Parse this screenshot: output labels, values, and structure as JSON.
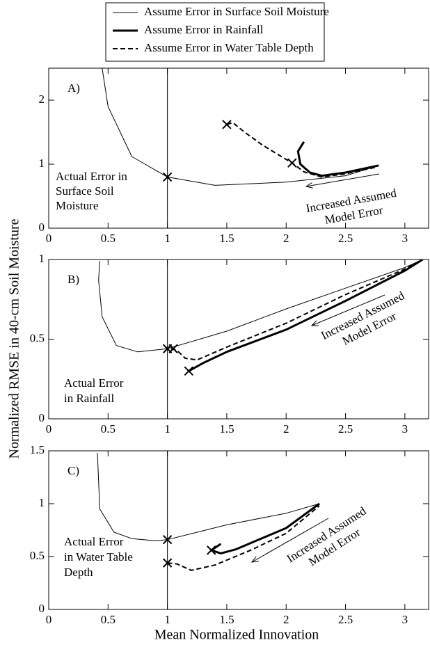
{
  "chart_data": [
    {
      "type": "line",
      "panel_label": "A)",
      "xlim": [
        0,
        3.2
      ],
      "ylim": [
        0,
        2.5
      ],
      "xticks": [
        0,
        0.5,
        1,
        1.5,
        2,
        2.5,
        3
      ],
      "yticks": [
        0,
        1,
        2
      ],
      "ref_x": 1,
      "series": [
        {
          "name": "Assume Error in Surface Soil Moisture",
          "color": "#000000",
          "line_width": 1,
          "dash": false,
          "x": [
            0.45,
            0.5,
            0.7,
            1.0,
            1.4,
            2.0,
            2.5,
            2.78
          ],
          "values": [
            2.5,
            1.9,
            1.12,
            0.8,
            0.67,
            0.72,
            0.82,
            0.98
          ]
        },
        {
          "name": "Assume Error in Rainfall",
          "color": "#000000",
          "line_width": 3,
          "dash": false,
          "x": [
            2.15,
            2.1,
            2.12,
            2.2,
            2.3,
            2.5,
            2.78
          ],
          "values": [
            1.35,
            1.2,
            1.0,
            0.87,
            0.82,
            0.87,
            0.98
          ]
        },
        {
          "name": "Assume Error in Water Table Depth",
          "color": "#000000",
          "line_width": 2,
          "dash": true,
          "x": [
            1.5,
            1.55,
            1.65,
            1.8,
            1.95,
            2.05,
            2.15,
            2.3,
            2.5,
            2.75
          ],
          "values": [
            1.62,
            1.65,
            1.5,
            1.3,
            1.13,
            1.02,
            0.88,
            0.8,
            0.85,
            0.95
          ]
        }
      ],
      "markers": {
        "x": [
          1,
          1.5,
          2.05
        ],
        "y": [
          0.8,
          1.62,
          1.02
        ]
      },
      "annotations": [
        {
          "lines": [
            "Actual Error in",
            "Surface Soil",
            "Moisture"
          ]
        },
        {
          "lines": [
            "Increased Assumed",
            "Model Error"
          ]
        }
      ]
    },
    {
      "type": "line",
      "panel_label": "B)",
      "y_label": "Normalized RMSE in 40-cm Soil Moisture",
      "xlim": [
        0,
        3.2
      ],
      "ylim": [
        0,
        1
      ],
      "xticks": [
        0,
        0.5,
        1,
        1.5,
        2,
        2.5,
        3
      ],
      "yticks": [
        0,
        0.5,
        1
      ],
      "ref_x": 1,
      "series": [
        {
          "name": "Assume Error in Surface Soil Moisture",
          "color": "#000000",
          "line_width": 1,
          "dash": false,
          "x": [
            0.43,
            0.42,
            0.45,
            0.57,
            0.75,
            1.0,
            1.5,
            2.0,
            2.5,
            3.0,
            3.15
          ],
          "values": [
            0.99,
            0.87,
            0.64,
            0.46,
            0.42,
            0.44,
            0.55,
            0.69,
            0.82,
            0.95,
            1.0
          ]
        },
        {
          "name": "Assume Error in Rainfall",
          "color": "#000000",
          "line_width": 3,
          "dash": false,
          "x": [
            1.18,
            1.3,
            1.5,
            2.0,
            2.5,
            3.0,
            3.15
          ],
          "values": [
            0.3,
            0.35,
            0.42,
            0.56,
            0.74,
            0.93,
            1.0
          ]
        },
        {
          "name": "Assume Error in Water Table Depth",
          "color": "#000000",
          "line_width": 2,
          "dash": true,
          "x": [
            1.03,
            1.08,
            1.15,
            1.25,
            1.5,
            2.0,
            2.5,
            3.0,
            3.15
          ],
          "values": [
            0.44,
            0.43,
            0.38,
            0.37,
            0.45,
            0.6,
            0.78,
            0.94,
            1.0
          ]
        }
      ],
      "markers": {
        "x": [
          1,
          1.05,
          1.18
        ],
        "y": [
          0.44,
          0.44,
          0.3
        ]
      },
      "annotations": [
        {
          "lines": [
            "Actual Error",
            "in Rainfall"
          ]
        },
        {
          "lines": [
            "Increased Assumed",
            "Model Error"
          ]
        }
      ]
    },
    {
      "type": "line",
      "panel_label": "C)",
      "x_label": "Mean Normalized Innovation",
      "xlim": [
        0,
        3.2
      ],
      "ylim": [
        0,
        1.5
      ],
      "xticks": [
        0,
        0.5,
        1,
        1.5,
        2,
        2.5,
        3
      ],
      "yticks": [
        0,
        0.5,
        1,
        1.5
      ],
      "ref_x": 1,
      "series": [
        {
          "name": "Assume Error in Surface Soil Moisture",
          "color": "#000000",
          "line_width": 1,
          "dash": false,
          "x": [
            0.41,
            0.43,
            0.55,
            0.7,
            0.9,
            1.0,
            1.5,
            2.0,
            2.28
          ],
          "values": [
            1.48,
            0.95,
            0.73,
            0.67,
            0.65,
            0.66,
            0.8,
            0.91,
            1.0
          ]
        },
        {
          "name": "Assume Error in Rainfall",
          "color": "#000000",
          "line_width": 3,
          "dash": false,
          "x": [
            1.45,
            1.37,
            1.45,
            1.58,
            2.0,
            2.28
          ],
          "values": [
            0.62,
            0.56,
            0.53,
            0.57,
            0.77,
            1.0
          ]
        },
        {
          "name": "Assume Error in Water Table Depth",
          "color": "#000000",
          "line_width": 2,
          "dash": true,
          "x": [
            1.0,
            1.08,
            1.2,
            1.4,
            1.7,
            2.0,
            2.28
          ],
          "values": [
            0.44,
            0.43,
            0.37,
            0.42,
            0.56,
            0.72,
            0.98
          ]
        }
      ],
      "markers": {
        "x": [
          1,
          1,
          1.37
        ],
        "y": [
          0.66,
          0.44,
          0.56
        ]
      },
      "annotations": [
        {
          "lines": [
            "Actual Error",
            "in Water Table",
            "Depth"
          ]
        },
        {
          "lines": [
            "Increased Assumed",
            "Model Error"
          ]
        }
      ]
    }
  ]
}
